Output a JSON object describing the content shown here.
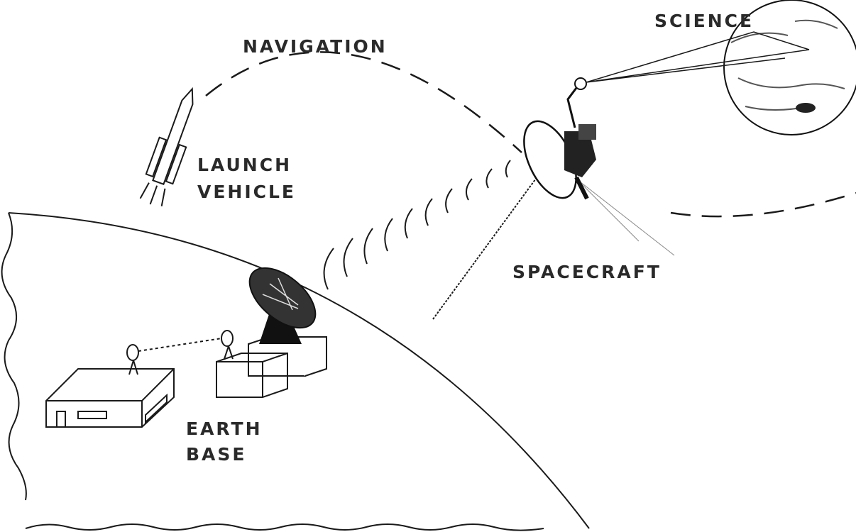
{
  "nodes": [
    {
      "lines": [
        "NAVIGATION"
      ]
    },
    {
      "lines": [
        "SCIENCE"
      ]
    },
    {
      "lines": [
        "LAUNCH",
        "VEHICLE"
      ]
    },
    {
      "lines": [
        "SPACECRAFT"
      ]
    },
    {
      "lines": [
        "EARTH",
        "BASE"
      ]
    }
  ]
}
